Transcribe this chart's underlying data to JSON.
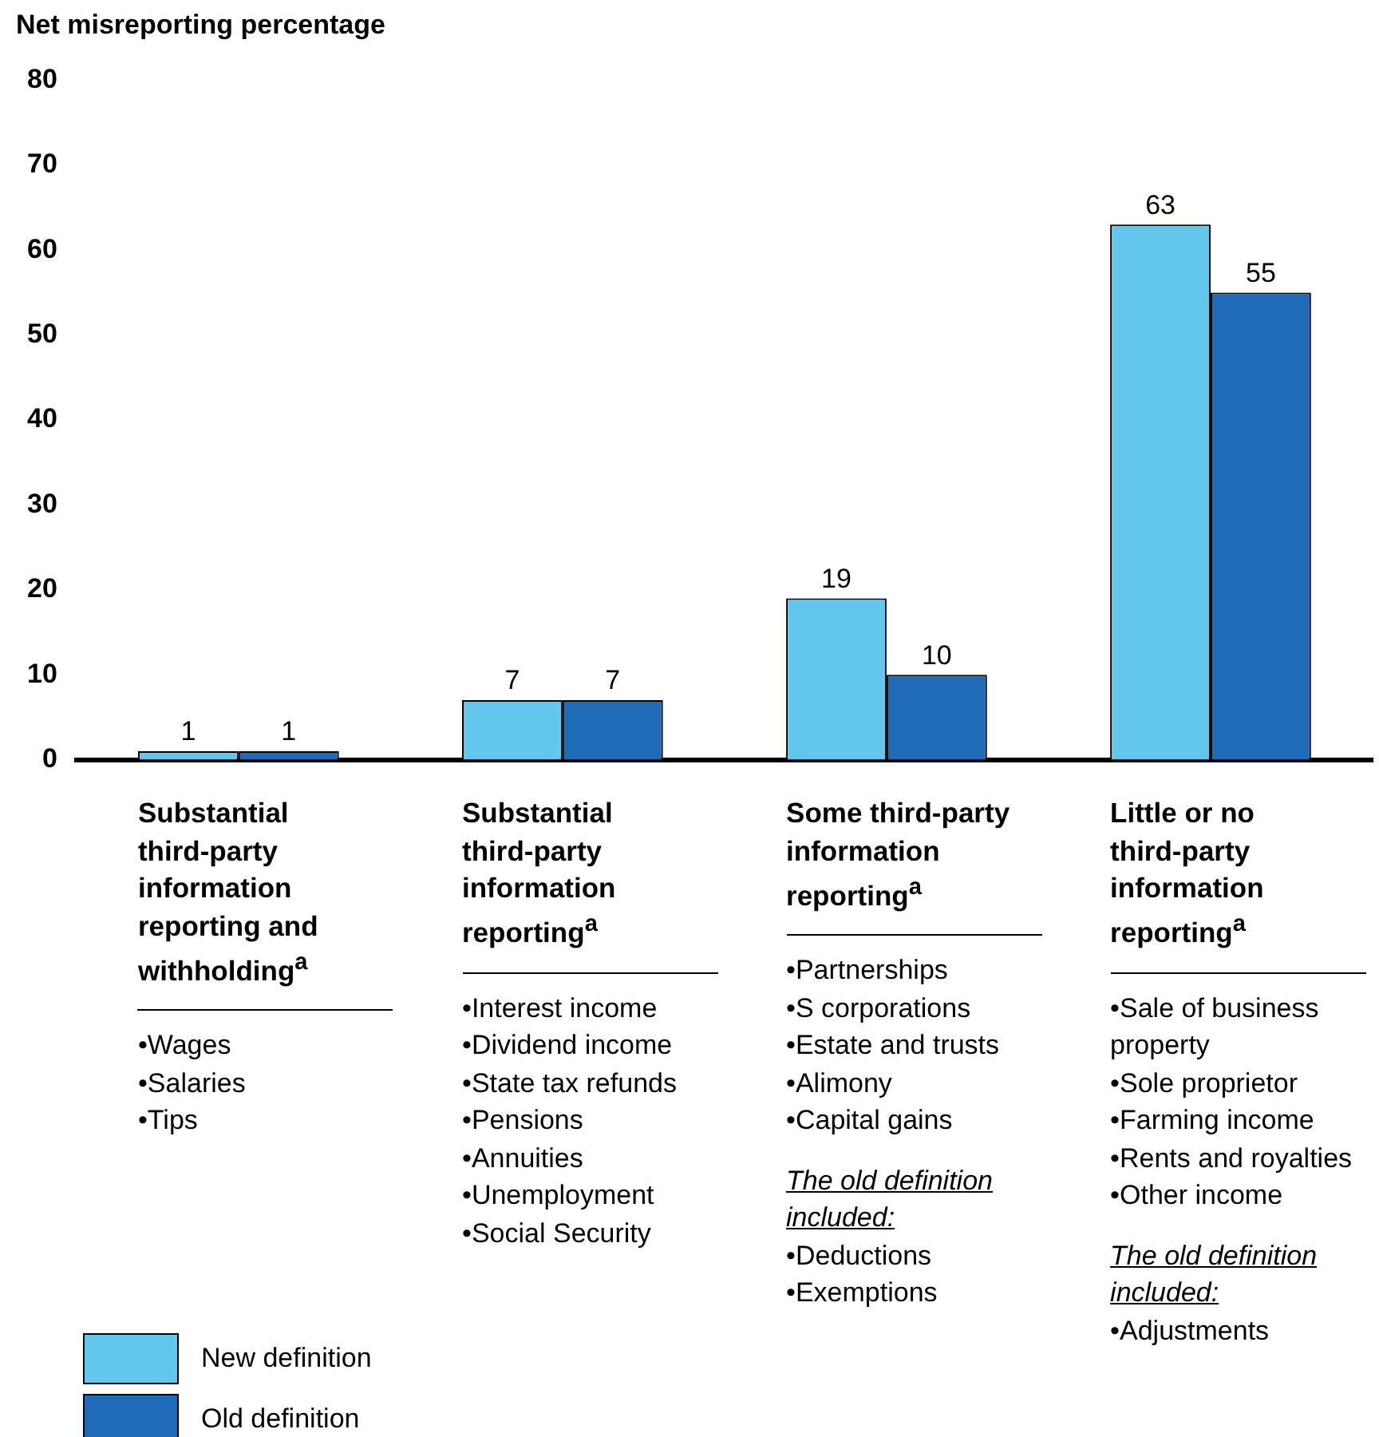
{
  "chart_data": {
    "type": "bar",
    "ylabel": "Net misreporting percentage",
    "categories": [
      "Substantial third-party information reporting and withholding$^{a}$",
      "Substantial third-party information reporting$^{a}$",
      "Some third-party information reporting$^{a}$",
      "Little or no third-party information reporting$^{a}$"
    ],
    "series": [
      {
        "name": "New definition",
        "color": "#63c6ec",
        "values": [
          1,
          7,
          19,
          63
        ]
      },
      {
        "name": "Old definition",
        "color": "#1f6bb8",
        "values": [
          1,
          7,
          10,
          55
        ]
      }
    ],
    "ylim": [
      0,
      80
    ],
    "yticks": [
      0,
      10,
      20,
      30,
      40,
      50,
      60,
      70,
      80
    ],
    "grid": false,
    "legend": "bottom left",
    "data_labels": true,
    "annotations": [
      "•Wages\n•Salaries\n•Tips",
      "•Interest income\n•Dividend income\n•State tax refunds\n•Pensions\n•Annuities\n•Unemployment\n•Social Security",
      "•Partnerships\n•S corporations\n•Estate and trusts\n•Alimony\n•Capital gains\nThe old definition included:\n•Deductions\n•Exemptions",
      "•Sale of business property\n•Sole proprietor\n•Farming income\n•Rents and royalties\n•Other income\nThe old definition included:\n•Adjustments"
    ]
  }
}
